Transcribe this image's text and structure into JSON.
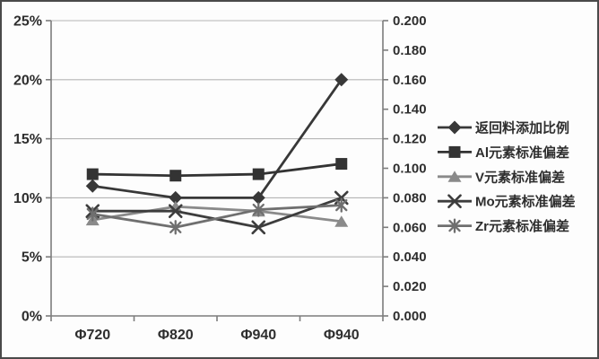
{
  "chart_data": {
    "type": "line",
    "title": "",
    "categories": [
      "Φ720",
      "Φ820",
      "Φ940",
      "Φ940"
    ],
    "series": [
      {
        "name": "返回料添加比例",
        "axis": "left",
        "marker": "diamond",
        "color": "#383838",
        "values": [
          11,
          10,
          10,
          20
        ]
      },
      {
        "name": "Al元素标准偏差",
        "axis": "right",
        "marker": "square",
        "color": "#333333",
        "values": [
          0.096,
          0.095,
          0.096,
          0.103
        ]
      },
      {
        "name": "V元素标准偏差",
        "axis": "right",
        "marker": "triangle",
        "color": "#8a8a8a",
        "values": [
          0.065,
          0.074,
          0.071,
          0.064
        ]
      },
      {
        "name": "Mo元素标准偏差",
        "axis": "right",
        "marker": "x",
        "color": "#3d3d3d",
        "values": [
          0.071,
          0.071,
          0.06,
          0.08
        ]
      },
      {
        "name": "Zr元素标准偏差",
        "axis": "right",
        "marker": "asterisk",
        "color": "#6f6f6f",
        "values": [
          0.069,
          0.06,
          0.072,
          0.075
        ]
      }
    ],
    "left_axis": {
      "ticks": [
        "0%",
        "5%",
        "10%",
        "15%",
        "20%",
        "25%"
      ],
      "min": 0,
      "max": 25
    },
    "right_axis": {
      "ticks": [
        "0.000",
        "0.020",
        "0.040",
        "0.060",
        "0.080",
        "0.100",
        "0.120",
        "0.140",
        "0.160",
        "0.180",
        "0.200"
      ],
      "min": 0,
      "max": 0.2
    },
    "grid": true,
    "legend_position": "right-middle"
  },
  "colors": {
    "background": "#fdfdfd",
    "frame_border": "#4a4a4a",
    "gridline": "#b5b5b5",
    "axis_line": "#7d7d7d",
    "text": "#2e2e2e"
  }
}
